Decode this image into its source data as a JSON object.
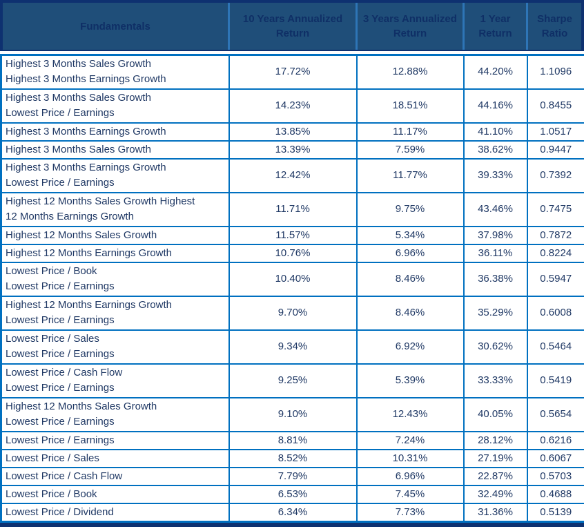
{
  "colors": {
    "header_bg": "#1F4E79",
    "header_text": "#0F2F66",
    "outer_border_navy": "#0E3170",
    "grid_blue": "#0070C0",
    "body_text": "#1F3864",
    "cell_bg": "#FFFFFF"
  },
  "chart_data": {
    "type": "table",
    "title": "Fundamentals",
    "columns": [
      "Fundamentals",
      "10 Years Annualized Return",
      "3 Years Annualized Return",
      "1 Year Return",
      "Sharpe Ratio"
    ],
    "rows": [
      {
        "fundamental_lines": [
          "Highest 3 Months Sales Growth",
          "Highest 3 Months Earnings Growth"
        ],
        "values": [
          "17.72%",
          "12.88%",
          "44.20%",
          "1.1096"
        ]
      },
      {
        "fundamental_lines": [
          "Highest 3 Months Sales Growth",
          "Lowest Price / Earnings"
        ],
        "values": [
          "14.23%",
          "18.51%",
          "44.16%",
          "0.8455"
        ]
      },
      {
        "fundamental_lines": [
          "Highest 3 Months Earnings Growth"
        ],
        "values": [
          "13.85%",
          "11.17%",
          "41.10%",
          "1.0517"
        ]
      },
      {
        "fundamental_lines": [
          "Highest 3 Months Sales Growth"
        ],
        "values": [
          "13.39%",
          "7.59%",
          "38.62%",
          "0.9447"
        ]
      },
      {
        "fundamental_lines": [
          "Highest 3 Months Earnings Growth",
          "Lowest Price / Earnings"
        ],
        "values": [
          "12.42%",
          "11.77%",
          "39.33%",
          "0.7392"
        ]
      },
      {
        "fundamental_lines": [
          "Highest 12 Months Sales Growth Highest",
          "12 Months Earnings Growth"
        ],
        "values": [
          "11.71%",
          "9.75%",
          "43.46%",
          "0.7475"
        ]
      },
      {
        "fundamental_lines": [
          "Highest 12 Months Sales Growth"
        ],
        "values": [
          "11.57%",
          "5.34%",
          "37.98%",
          "0.7872"
        ]
      },
      {
        "fundamental_lines": [
          "Highest 12 Months Earnings Growth"
        ],
        "values": [
          "10.76%",
          "6.96%",
          "36.11%",
          "0.8224"
        ]
      },
      {
        "fundamental_lines": [
          "Lowest Price / Book",
          "Lowest Price / Earnings"
        ],
        "values": [
          "10.40%",
          "8.46%",
          "36.38%",
          "0.5947"
        ]
      },
      {
        "fundamental_lines": [
          "Highest 12 Months Earnings Growth",
          "Lowest Price / Earnings"
        ],
        "values": [
          "9.70%",
          "8.46%",
          "35.29%",
          "0.6008"
        ]
      },
      {
        "fundamental_lines": [
          "Lowest Price / Sales",
          "Lowest Price / Earnings"
        ],
        "values": [
          "9.34%",
          "6.92%",
          "30.62%",
          "0.5464"
        ]
      },
      {
        "fundamental_lines": [
          "Lowest Price / Cash Flow",
          "Lowest Price / Earnings"
        ],
        "values": [
          "9.25%",
          "5.39%",
          "33.33%",
          "0.5419"
        ]
      },
      {
        "fundamental_lines": [
          "Highest 12 Months Sales Growth",
          "Lowest Price / Earnings"
        ],
        "values": [
          "9.10%",
          "12.43%",
          "40.05%",
          "0.5654"
        ]
      },
      {
        "fundamental_lines": [
          "Lowest Price / Earnings"
        ],
        "values": [
          "8.81%",
          "7.24%",
          "28.12%",
          "0.6216"
        ]
      },
      {
        "fundamental_lines": [
          "Lowest Price / Sales"
        ],
        "values": [
          "8.52%",
          "10.31%",
          "27.19%",
          "0.6067"
        ]
      },
      {
        "fundamental_lines": [
          "Lowest Price / Cash Flow"
        ],
        "values": [
          "7.79%",
          "6.96%",
          "22.87%",
          "0.5703"
        ]
      },
      {
        "fundamental_lines": [
          "Lowest Price / Book"
        ],
        "values": [
          "6.53%",
          "7.45%",
          "32.49%",
          "0.4688"
        ]
      },
      {
        "fundamental_lines": [
          "Lowest Price / Dividend"
        ],
        "values": [
          "6.34%",
          "7.73%",
          "31.36%",
          "0.5139"
        ]
      }
    ]
  }
}
